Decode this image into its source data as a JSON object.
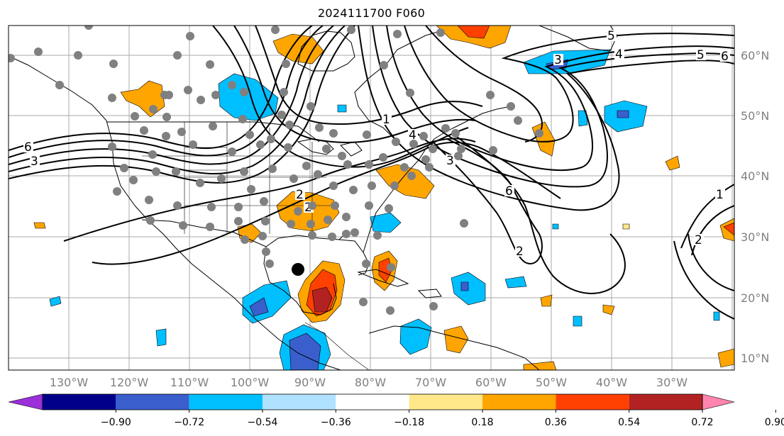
{
  "title": "2024111700 F060",
  "map": {
    "projection": "plate-carree",
    "lon_range": [
      -140,
      -17
    ],
    "lat_range": [
      8,
      65
    ],
    "lon_labels": [
      "130°W",
      "120°W",
      "110°W",
      "100°W",
      "90°W",
      "80°W",
      "70°W",
      "60°W",
      "50°W",
      "40°W",
      "30°W"
    ],
    "lat_labels": [
      "60°N",
      "50°N",
      "40°N",
      "30°N",
      "20°N",
      "10°N"
    ],
    "gridlines": true,
    "contour_labels": [
      "6",
      "3",
      "5",
      "4",
      "3",
      "6",
      "5",
      "4",
      "3",
      "2",
      "1",
      "2",
      "6",
      "2",
      "1",
      "2"
    ],
    "marker": {
      "name": "storm-center",
      "lon": -92.5,
      "lat": 24.5,
      "color": "#000000"
    },
    "station_dot_color": "#808080"
  },
  "colorbar": {
    "extend": "both",
    "tick_labels": [
      "−0.90",
      "−0.72",
      "−0.54",
      "−0.36",
      "−0.18",
      "0.18",
      "0.36",
      "0.54",
      "0.72",
      "0.90"
    ],
    "colors": [
      "#9b30d9",
      "#00008b",
      "#3a5fcd",
      "#00bfff",
      "#b0e2ff",
      "#ffffff",
      "#ffe88a",
      "#ffa500",
      "#ff4000",
      "#b22222",
      "#ff85b0"
    ]
  }
}
